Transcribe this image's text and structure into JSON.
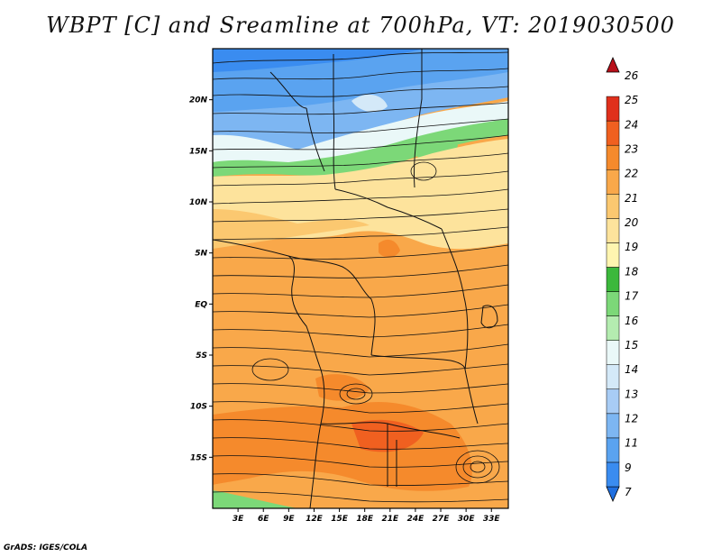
{
  "title": "WBPT [C] and Sreamline at 700hPa, VT: 2019030500",
  "footer": "GrADS: IGES/COLA",
  "map": {
    "lat_labels": [
      "20N",
      "15N",
      "10N",
      "5N",
      "EQ",
      "5S",
      "10S",
      "15S"
    ],
    "lat_values": [
      20,
      15,
      10,
      5,
      0,
      -5,
      -10,
      -15
    ],
    "lon_labels": [
      "3E",
      "6E",
      "9E",
      "12E",
      "15E",
      "18E",
      "21E",
      "24E",
      "27E",
      "30E",
      "33E"
    ],
    "lon_values": [
      3,
      6,
      9,
      12,
      15,
      18,
      21,
      24,
      27,
      30,
      33
    ],
    "lon_range": [
      0,
      35
    ],
    "lat_range": [
      -20,
      25
    ]
  },
  "colorbar": {
    "labels": [
      "7",
      "9",
      "11",
      "12",
      "13",
      "14",
      "15",
      "16",
      "17",
      "18",
      "19",
      "20",
      "21",
      "22",
      "23",
      "24",
      "25",
      "26"
    ],
    "colors": [
      "#1f6fe0",
      "#3a8cf0",
      "#5aa3f0",
      "#7db6f2",
      "#a8ccf5",
      "#d4e9f8",
      "#eaf8f8",
      "#b4ecb0",
      "#7cd878",
      "#3cb83c",
      "#fff5b0",
      "#fde39c",
      "#fbc870",
      "#f9a84a",
      "#f58a2c",
      "#f06020",
      "#e0301c",
      "#b8101a"
    ]
  }
}
